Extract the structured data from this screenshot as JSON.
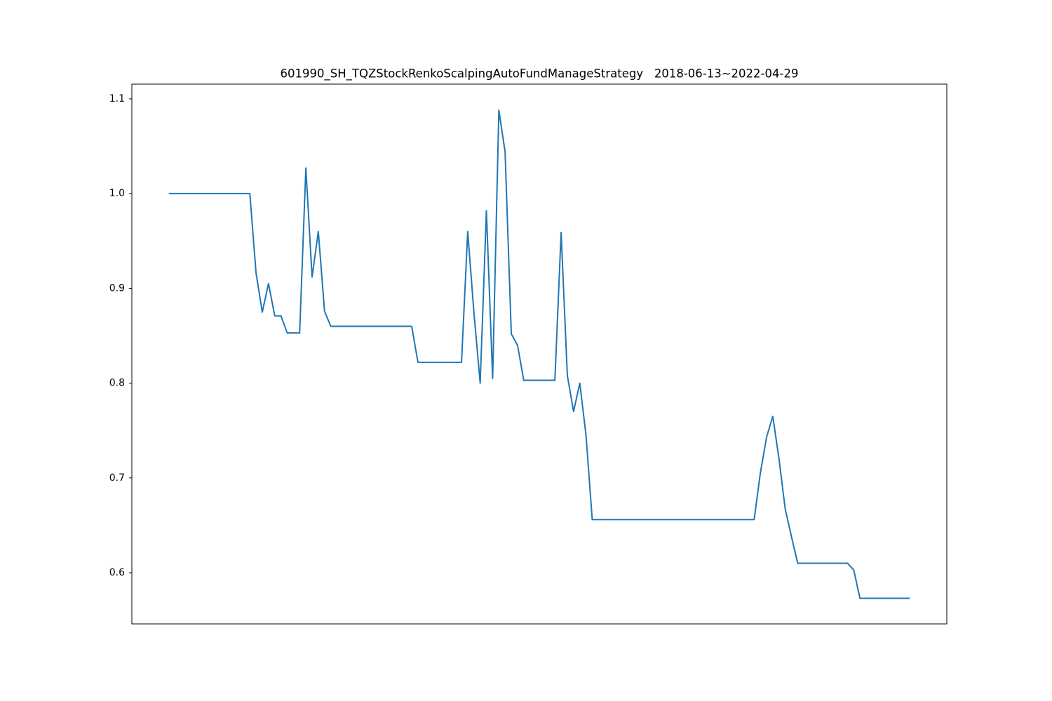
{
  "chart_data": {
    "type": "line",
    "title": "601990_SH_TQZStockRenkoScalpingAutoFundManageStrategy   2018-06-13~2022-04-29",
    "color": "#1f77b4",
    "ylim": [
      0.546,
      1.1155
    ],
    "yticks": [
      0.6,
      0.7,
      0.8,
      0.9,
      {
        "value": 1.0,
        "label": "1.0"
      },
      1.1
    ],
    "values": [
      1.0,
      1.0,
      1.0,
      1.0,
      1.0,
      1.0,
      1.0,
      1.0,
      1.0,
      1.0,
      1.0,
      1.0,
      1.0,
      1.0,
      0.916,
      0.875,
      0.905,
      0.871,
      0.871,
      0.853,
      0.853,
      0.853,
      1.027,
      0.912,
      0.96,
      0.876,
      0.86,
      0.86,
      0.86,
      0.86,
      0.86,
      0.86,
      0.86,
      0.86,
      0.86,
      0.86,
      0.86,
      0.86,
      0.86,
      0.86,
      0.822,
      0.822,
      0.822,
      0.822,
      0.822,
      0.822,
      0.822,
      0.822,
      0.96,
      0.874,
      0.8,
      0.982,
      0.805,
      1.088,
      1.044,
      0.852,
      0.84,
      0.803,
      0.803,
      0.803,
      0.803,
      0.803,
      0.803,
      0.959,
      0.808,
      0.77,
      0.8,
      0.745,
      0.656,
      0.656,
      0.656,
      0.656,
      0.656,
      0.656,
      0.656,
      0.656,
      0.656,
      0.656,
      0.656,
      0.656,
      0.656,
      0.656,
      0.656,
      0.656,
      0.656,
      0.656,
      0.656,
      0.656,
      0.656,
      0.656,
      0.656,
      0.656,
      0.656,
      0.656,
      0.656,
      0.705,
      0.743,
      0.765,
      0.72,
      0.667,
      0.638,
      0.61,
      0.61,
      0.61,
      0.61,
      0.61,
      0.61,
      0.61,
      0.61,
      0.61,
      0.603,
      0.573,
      0.573,
      0.573,
      0.573,
      0.573,
      0.573,
      0.573,
      0.573,
      0.573
    ]
  }
}
